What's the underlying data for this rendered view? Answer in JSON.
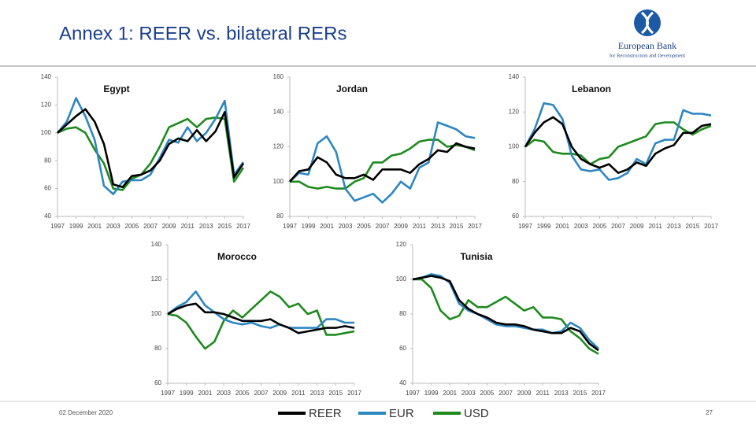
{
  "header": {
    "title": "Annex 1: REER vs. bilateral RERs",
    "logo_name": "European Bank",
    "logo_subtitle": "for Reconstruction and Development"
  },
  "footer": {
    "date": "02 December 2020",
    "page": "27"
  },
  "legend": [
    {
      "name": "REER",
      "color": "#000000"
    },
    {
      "name": "EUR",
      "color": "#2e86c1"
    },
    {
      "name": "USD",
      "color": "#1e8a1e"
    }
  ],
  "chart_data": [
    {
      "type": "line",
      "title": "Egypt",
      "x": [
        1997,
        1998,
        1999,
        2000,
        2001,
        2002,
        2003,
        2004,
        2005,
        2006,
        2007,
        2008,
        2009,
        2010,
        2011,
        2012,
        2013,
        2014,
        2015,
        2016,
        2017
      ],
      "xlim": [
        1997,
        2017
      ],
      "xticks": [
        1997,
        1999,
        2001,
        2003,
        2005,
        2007,
        2009,
        2011,
        2013,
        2015,
        2017
      ],
      "ylim": [
        40,
        140
      ],
      "yticks": [
        40,
        60,
        80,
        100,
        120,
        140
      ],
      "series": [
        {
          "values": [
            100,
            106,
            112,
            117,
            108,
            92,
            63,
            61,
            69,
            70,
            73,
            80,
            92,
            96,
            94,
            102,
            94,
            101,
            115,
            68,
            78
          ]
        },
        {
          "values": [
            100,
            108,
            125,
            112,
            95,
            62,
            56,
            65,
            66,
            66,
            70,
            82,
            95,
            93,
            104,
            94,
            100,
            110,
            123,
            70,
            79
          ]
        },
        {
          "values": [
            100,
            103,
            104,
            100,
            88,
            78,
            60,
            59,
            67,
            70,
            78,
            90,
            104,
            107,
            110,
            104,
            110,
            111,
            110,
            65,
            75
          ]
        }
      ]
    },
    {
      "type": "line",
      "title": "Jordan",
      "x": [
        1997,
        1998,
        1999,
        2000,
        2001,
        2002,
        2003,
        2004,
        2005,
        2006,
        2007,
        2008,
        2009,
        2010,
        2011,
        2012,
        2013,
        2014,
        2015,
        2016,
        2017
      ],
      "xlim": [
        1997,
        2017
      ],
      "xticks": [
        1997,
        1999,
        2001,
        2003,
        2005,
        2007,
        2009,
        2011,
        2013,
        2015,
        2017
      ],
      "ylim": [
        80,
        160
      ],
      "yticks": [
        80,
        100,
        120,
        140,
        160
      ],
      "series": [
        {
          "values": [
            100,
            106,
            107,
            114,
            111,
            104,
            102,
            102,
            104,
            101,
            107,
            107,
            107,
            105,
            110,
            113,
            118,
            117,
            122,
            120,
            119
          ]
        },
        {
          "values": [
            100,
            105,
            104,
            122,
            126,
            117,
            96,
            89,
            91,
            93,
            88,
            93,
            100,
            96,
            108,
            111,
            134,
            132,
            130,
            126,
            125
          ]
        },
        {
          "values": [
            100,
            100,
            97,
            96,
            97,
            96,
            96,
            100,
            102,
            111,
            111,
            115,
            116,
            119,
            123,
            124,
            124,
            120,
            121,
            120,
            118
          ]
        }
      ]
    },
    {
      "type": "line",
      "title": "Lebanon",
      "x": [
        1997,
        1998,
        1999,
        2000,
        2001,
        2002,
        2003,
        2004,
        2005,
        2006,
        2007,
        2008,
        2009,
        2010,
        2011,
        2012,
        2013,
        2014,
        2015,
        2016,
        2017
      ],
      "xlim": [
        1997,
        2017
      ],
      "xticks": [
        1997,
        1999,
        2001,
        2003,
        2005,
        2007,
        2009,
        2011,
        2013,
        2015,
        2017
      ],
      "ylim": [
        60,
        140
      ],
      "yticks": [
        60,
        80,
        100,
        120,
        140
      ],
      "series": [
        {
          "values": [
            100,
            108,
            114,
            117,
            113,
            100,
            93,
            90,
            88,
            90,
            85,
            87,
            91,
            89,
            96,
            99,
            101,
            108,
            108,
            112,
            113
          ]
        },
        {
          "values": [
            100,
            110,
            125,
            124,
            116,
            95,
            87,
            86,
            87,
            81,
            82,
            85,
            93,
            90,
            102,
            104,
            104,
            121,
            119,
            119,
            118
          ]
        },
        {
          "values": [
            100,
            104,
            103,
            97,
            96,
            96,
            95,
            90,
            93,
            94,
            100,
            102,
            104,
            106,
            113,
            114,
            114,
            110,
            107,
            110,
            112
          ]
        }
      ]
    },
    {
      "type": "line",
      "title": "Morocco",
      "x": [
        1997,
        1998,
        1999,
        2000,
        2001,
        2002,
        2003,
        2004,
        2005,
        2006,
        2007,
        2008,
        2009,
        2010,
        2011,
        2012,
        2013,
        2014,
        2015,
        2016,
        2017
      ],
      "xlim": [
        1997,
        2017
      ],
      "xticks": [
        1997,
        1999,
        2001,
        2003,
        2005,
        2007,
        2009,
        2011,
        2013,
        2015,
        2017
      ],
      "ylim": [
        60,
        140
      ],
      "yticks": [
        60,
        80,
        100,
        120,
        140
      ],
      "series": [
        {
          "values": [
            100,
            103,
            105,
            106,
            101,
            101,
            100,
            98,
            96,
            96,
            96,
            97,
            94,
            92,
            89,
            90,
            91,
            92,
            92,
            93,
            92
          ]
        },
        {
          "values": [
            100,
            104,
            107,
            113,
            105,
            101,
            97,
            95,
            94,
            95,
            93,
            92,
            94,
            92,
            92,
            92,
            92,
            97,
            97,
            95,
            95
          ]
        },
        {
          "values": [
            100,
            99,
            95,
            87,
            80,
            84,
            96,
            102,
            98,
            103,
            108,
            113,
            110,
            104,
            106,
            100,
            102,
            88,
            88,
            89,
            90
          ]
        }
      ]
    },
    {
      "type": "line",
      "title": "Tunisia",
      "x": [
        1997,
        1998,
        1999,
        2000,
        2001,
        2002,
        2003,
        2004,
        2005,
        2006,
        2007,
        2008,
        2009,
        2010,
        2011,
        2012,
        2013,
        2014,
        2015,
        2016,
        2017
      ],
      "xlim": [
        1997,
        2017
      ],
      "xticks": [
        1997,
        1999,
        2001,
        2003,
        2005,
        2007,
        2009,
        2011,
        2013,
        2015,
        2017
      ],
      "ylim": [
        40,
        120
      ],
      "yticks": [
        40,
        60,
        80,
        100,
        120
      ],
      "series": [
        {
          "values": [
            100,
            101,
            102,
            101,
            99,
            88,
            83,
            80,
            78,
            75,
            74,
            74,
            73,
            71,
            70,
            69,
            69,
            72,
            70,
            63,
            59
          ]
        },
        {
          "values": [
            100,
            101,
            103,
            102,
            98,
            86,
            82,
            80,
            77,
            74,
            73,
            73,
            72,
            71,
            71,
            69,
            70,
            75,
            72,
            65,
            60
          ]
        },
        {
          "values": [
            100,
            100,
            95,
            82,
            77,
            79,
            88,
            84,
            84,
            87,
            90,
            86,
            82,
            84,
            78,
            78,
            77,
            70,
            66,
            60,
            57
          ]
        }
      ]
    }
  ]
}
